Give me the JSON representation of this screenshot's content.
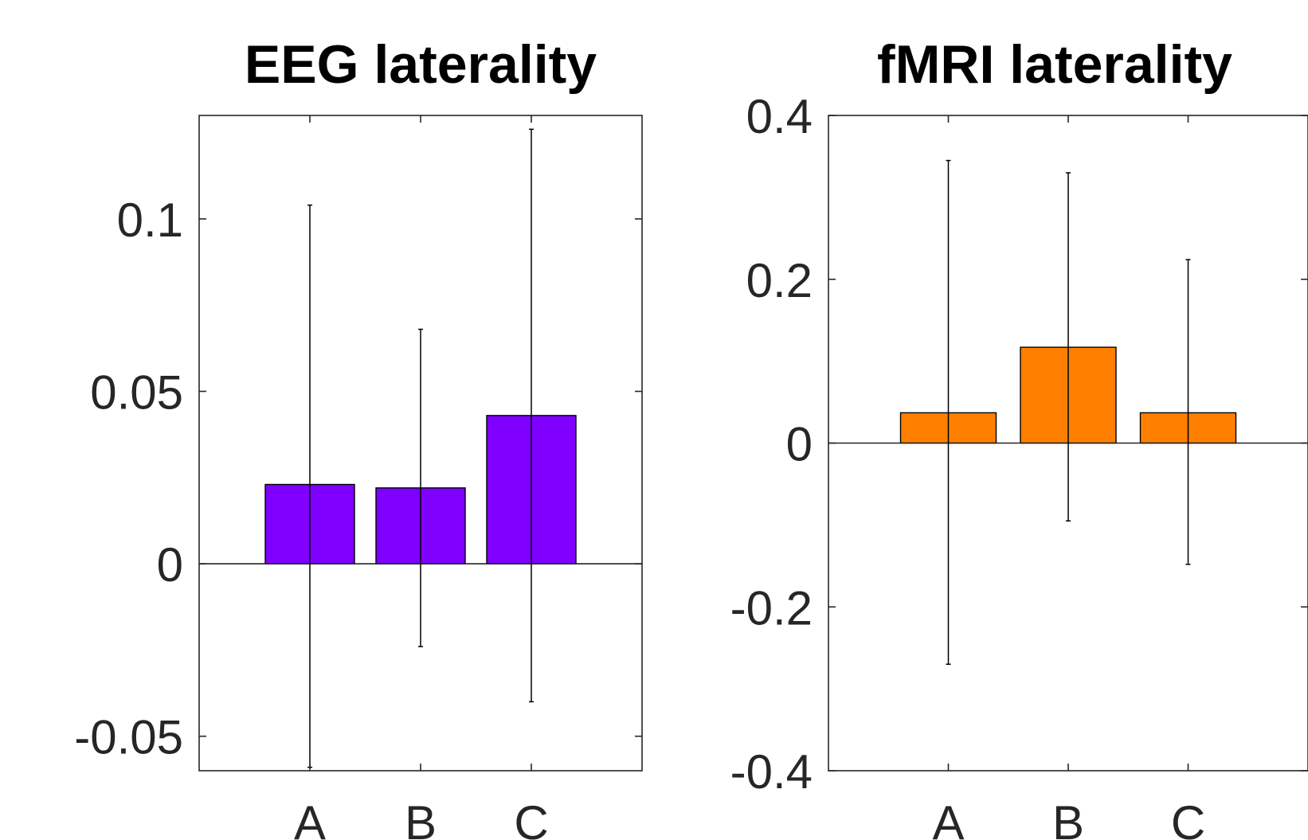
{
  "chart_data": [
    {
      "type": "bar",
      "title": "EEG laterality",
      "categories": [
        "A",
        "B",
        "C"
      ],
      "values": [
        0.023,
        0.022,
        0.043
      ],
      "error_bars": {
        "lower": [
          -0.059,
          -0.024,
          -0.04
        ],
        "upper": [
          0.104,
          0.068,
          0.126
        ]
      },
      "bar_color": "#7f00ff",
      "ylim": [
        -0.06,
        0.13
      ],
      "yticks": [
        -0.05,
        0,
        0.05,
        0.1
      ],
      "ytick_labels": [
        "-0.05",
        "0",
        "0.05",
        "0.1"
      ],
      "grid": false
    },
    {
      "type": "bar",
      "title": "fMRI laterality",
      "categories": [
        "A",
        "B",
        "C"
      ],
      "values": [
        0.037,
        0.117,
        0.037
      ],
      "error_bars": {
        "lower": [
          -0.27,
          -0.095,
          -0.148
        ],
        "upper": [
          0.345,
          0.33,
          0.224
        ]
      },
      "bar_color": "#ff8000",
      "ylim": [
        -0.4,
        0.4
      ],
      "yticks": [
        -0.4,
        -0.2,
        0,
        0.2,
        0.4
      ],
      "ytick_labels": [
        "-0.4",
        "-0.2",
        "0",
        "0.2",
        "0.4"
      ],
      "grid": false
    }
  ]
}
